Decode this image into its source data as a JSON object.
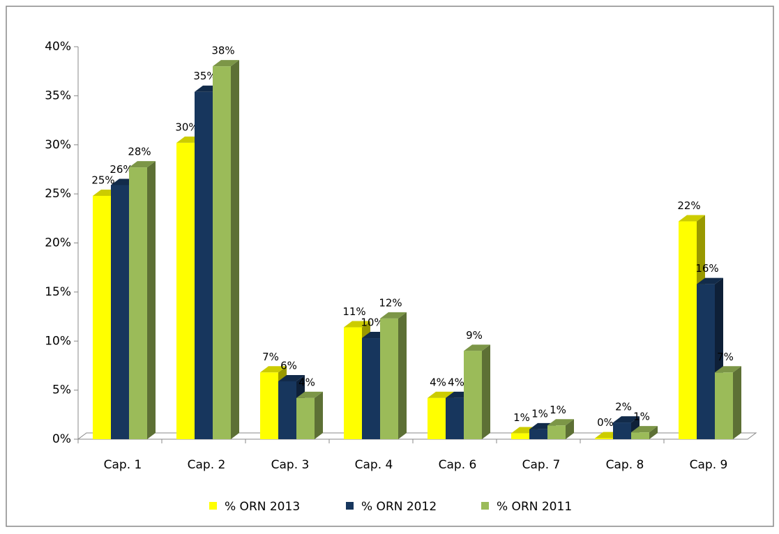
{
  "chart_data": {
    "type": "bar3d",
    "categories": [
      "Cap. 1",
      "Cap. 2",
      "Cap. 3",
      "Cap. 4",
      "Cap. 6",
      "Cap. 7",
      "Cap. 8",
      "Cap. 9"
    ],
    "series": [
      {
        "name": "% ORN 2013",
        "color": "#ffff00",
        "values": [
          24.8,
          30.2,
          6.8,
          11.4,
          4.2,
          0.6,
          0.1,
          22.2
        ],
        "value_labels": [
          "25%",
          "30%",
          "7%",
          "11%",
          "4%",
          "1%",
          "0%",
          "22%"
        ]
      },
      {
        "name": "% ORN 2012",
        "color": "#17365d",
        "values": [
          25.9,
          35.4,
          5.9,
          10.3,
          4.2,
          1.0,
          1.7,
          15.8
        ],
        "value_labels": [
          "26%",
          "35%",
          "6%",
          "10%",
          "4%",
          "1%",
          "2%",
          "16%"
        ]
      },
      {
        "name": "% ORN 2011",
        "color": "#9bbb59",
        "values": [
          27.7,
          38.0,
          4.2,
          12.3,
          9.0,
          1.4,
          0.7,
          6.8
        ],
        "value_labels": [
          "28%",
          "38%",
          "4%",
          "12%",
          "9%",
          "1%",
          "1%",
          "7%"
        ]
      }
    ],
    "ylim": [
      0,
      40
    ],
    "yticks": [
      {
        "value": 0,
        "label": "0%"
      },
      {
        "value": 5,
        "label": "5%"
      },
      {
        "value": 10,
        "label": "10%"
      },
      {
        "value": 15,
        "label": "15%"
      },
      {
        "value": 20,
        "label": "20%"
      },
      {
        "value": 25,
        "label": "25%"
      },
      {
        "value": 30,
        "label": "30%"
      },
      {
        "value": 35,
        "label": "35%"
      },
      {
        "value": 40,
        "label": "40%"
      }
    ],
    "legend": "bottom"
  }
}
